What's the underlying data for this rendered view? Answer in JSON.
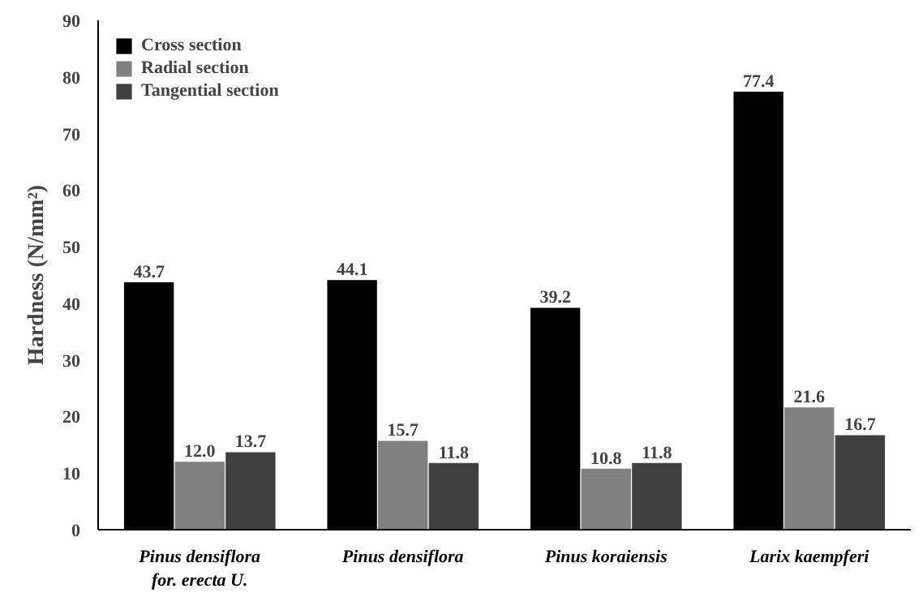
{
  "chart_data": {
    "type": "bar",
    "ylabel": "Hardness (N/mm²)",
    "categories": [
      "Pinus densiflora\nfor. erecta U.",
      "Pinus densiflora",
      "Pinus koraiensis",
      "Larix kaempferi"
    ],
    "series": [
      {
        "name": "Cross section",
        "color": "#000000",
        "values": [
          43.7,
          44.1,
          39.2,
          77.4
        ],
        "value_labels": [
          "43.7",
          "44.1",
          "39.2",
          "77.4"
        ]
      },
      {
        "name": "Radial section",
        "color": "#808080",
        "values": [
          12.0,
          15.7,
          10.8,
          21.6
        ],
        "value_labels": [
          "12.0",
          "15.7",
          "10.8",
          "21.6"
        ]
      },
      {
        "name": "Tangential section",
        "color": "#404040",
        "values": [
          13.7,
          11.8,
          11.8,
          16.7
        ],
        "value_labels": [
          "13.7",
          "11.8",
          "11.8",
          "16.7"
        ]
      }
    ],
    "ylim": [
      0,
      90
    ],
    "yticks": [
      0,
      10,
      20,
      30,
      40,
      50,
      60,
      70,
      80,
      90
    ],
    "grid": false,
    "legend": "top left"
  }
}
